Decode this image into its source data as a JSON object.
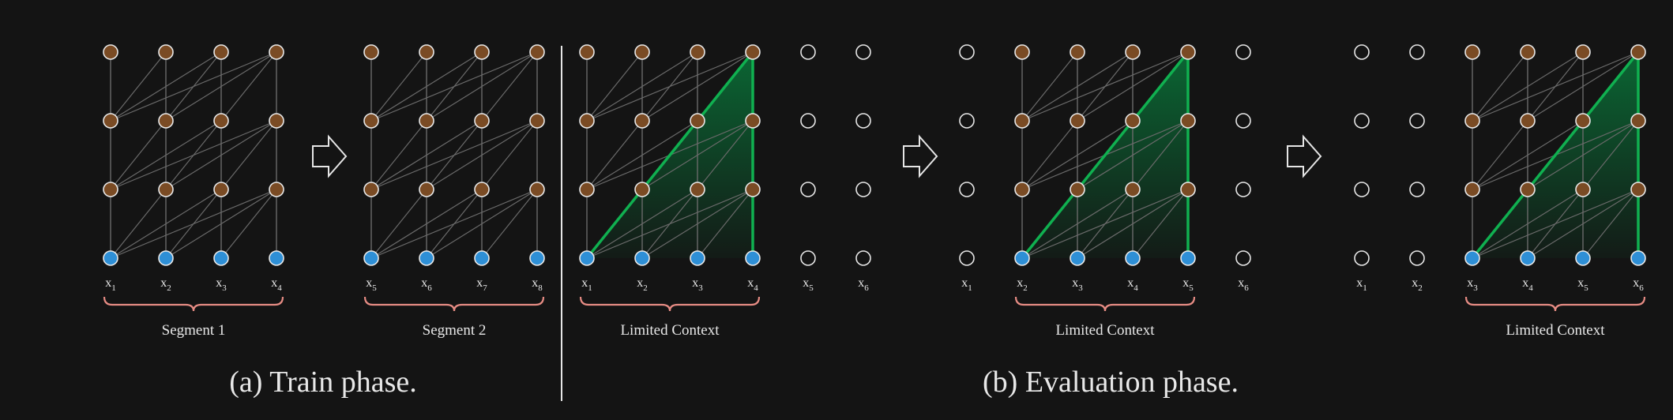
{
  "colors": {
    "background": "#141414",
    "hidden_node": "#7a4b24",
    "input_node": "#2e8fd6",
    "empty_node_stroke": "#e6e6e6",
    "edge": "#6a6a6a",
    "context_fill": "#0f7a3c",
    "context_stroke": "#10b050",
    "brace": "#e78c84",
    "text": "#e8e8e8"
  },
  "captions": {
    "train": "(a) Train phase.",
    "eval": "(b) Evaluation phase."
  },
  "arrow_icon": "right-arrow-outline-icon",
  "panels": [
    {
      "id": "train-segment-1",
      "tokens": [
        "x1",
        "x2",
        "x3",
        "x4"
      ],
      "token_labels": [
        [
          "x",
          "1"
        ],
        [
          "x",
          "2"
        ],
        [
          "x",
          "3"
        ],
        [
          "x",
          "4"
        ]
      ],
      "active": [
        true,
        true,
        true,
        true
      ],
      "brace_label": "Segment 1",
      "highlight": false
    },
    {
      "id": "train-segment-2",
      "tokens": [
        "x5",
        "x6",
        "x7",
        "x8"
      ],
      "token_labels": [
        [
          "x",
          "5"
        ],
        [
          "x",
          "6"
        ],
        [
          "x",
          "7"
        ],
        [
          "x",
          "8"
        ]
      ],
      "active": [
        true,
        true,
        true,
        true
      ],
      "brace_label": "Segment 2",
      "highlight": false
    },
    {
      "id": "eval-step-1",
      "token_labels": [
        [
          "x",
          "1"
        ],
        [
          "x",
          "2"
        ],
        [
          "x",
          "3"
        ],
        [
          "x",
          "4"
        ],
        [
          "x",
          "5"
        ],
        [
          "x",
          "6"
        ]
      ],
      "active": [
        true,
        true,
        true,
        true,
        false,
        false
      ],
      "brace_label": "Limited Context",
      "highlight": true
    },
    {
      "id": "eval-step-2",
      "token_labels": [
        [
          "x",
          "1"
        ],
        [
          "x",
          "2"
        ],
        [
          "x",
          "3"
        ],
        [
          "x",
          "4"
        ],
        [
          "x",
          "5"
        ],
        [
          "x",
          "6"
        ]
      ],
      "active": [
        false,
        true,
        true,
        true,
        true,
        false
      ],
      "brace_label": "Limited Context",
      "highlight": true
    },
    {
      "id": "eval-step-3",
      "token_labels": [
        [
          "x",
          "1"
        ],
        [
          "x",
          "2"
        ],
        [
          "x",
          "3"
        ],
        [
          "x",
          "4"
        ],
        [
          "x",
          "5"
        ],
        [
          "x",
          "6"
        ]
      ],
      "active": [
        false,
        false,
        true,
        true,
        true,
        true
      ],
      "brace_label": "Limited Context",
      "highlight": true
    }
  ]
}
